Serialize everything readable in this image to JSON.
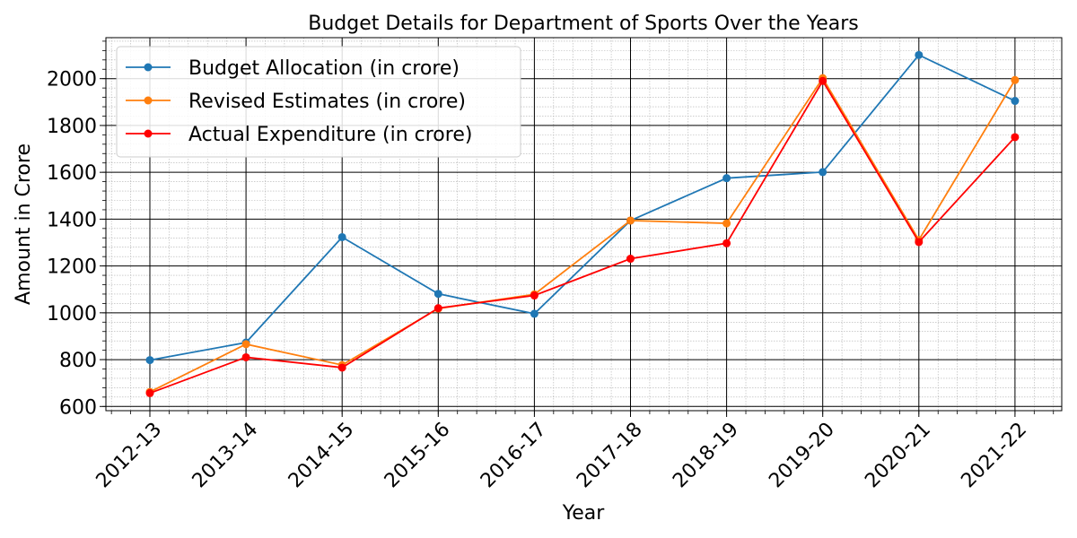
{
  "chart_data": {
    "type": "line",
    "title": "Budget Details for Department of Sports Over the Years",
    "xlabel": "Year",
    "ylabel": "Amount in Crore",
    "categories": [
      "2012-13",
      "2013-14",
      "2014-15",
      "2015-16",
      "2016-17",
      "2017-18",
      "2018-19",
      "2019-20",
      "2020-21",
      "2021-22"
    ],
    "ylim": [
      582,
      2175
    ],
    "yticks": [
      600,
      800,
      1000,
      1200,
      1400,
      1600,
      1800,
      2000
    ],
    "grid": true,
    "minor_grid": true,
    "legend_position": "top-left",
    "series": [
      {
        "name": "Budget Allocation (in crore)",
        "color": "#1f77b4",
        "values": [
          798,
          873,
          1323,
          1081,
          996,
          1394,
          1575,
          1601,
          2101,
          1905
        ]
      },
      {
        "name": "Revised Estimates (in crore)",
        "color": "#ff7f0e",
        "values": [
          662,
          866,
          777,
          1018,
          1079,
          1394,
          1382,
          2002,
          1311,
          1994
        ]
      },
      {
        "name": "Actual Expenditure (in crore)",
        "color": "#ff0000",
        "values": [
          657,
          810,
          766,
          1020,
          1074,
          1231,
          1297,
          1990,
          1302,
          1750
        ]
      }
    ]
  }
}
